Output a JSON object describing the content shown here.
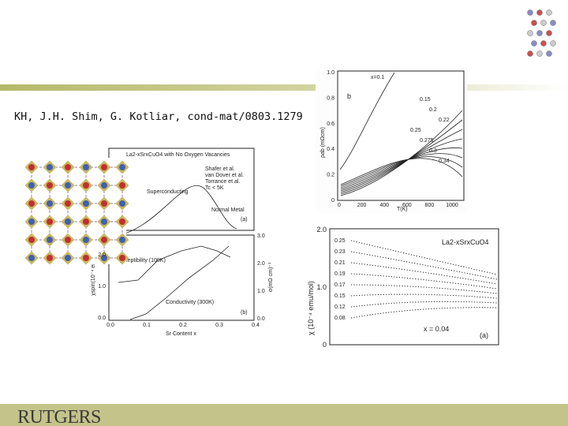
{
  "citation": "KH, J.H. Shim, G. Kotliar, cond-mat/0803.1279",
  "footer": {
    "logo": "RUTGERS"
  },
  "figure_left": {
    "title": "La2-xSrxCuO4 with No Oxygen Vacancies",
    "legend": [
      "Shafer et al.",
      "van Dover et al.",
      "Torrance et al.",
      "Tc < 5K"
    ],
    "region_labels": [
      "Superconducting",
      "Normal Metal"
    ],
    "panel_a": "(a)",
    "panel_b": "(b)",
    "susceptibility": "Susceptibility (100K)",
    "conductivity": "Conductivity (300K)",
    "x_label": "Sr Content x",
    "y_label_left": "χspin(10⁻⁴ em)",
    "y_label_right": "σ(mΩ cm)⁻¹",
    "x_ticks": [
      "0.0",
      "0.1",
      "0.2",
      "0.3",
      "0.4"
    ],
    "y_ticks_left": [
      "2.0",
      "1.0",
      "0.0"
    ],
    "y_ticks_right": [
      "3.0",
      "2.0",
      "1.0",
      "0.0"
    ]
  },
  "figure_resistivity": {
    "panel": "b",
    "x_label": "T(K)",
    "y_label": "ρab (mΩcm)",
    "x_ticks": [
      "0",
      "200",
      "400",
      "600",
      "800",
      "1000"
    ],
    "y_ticks": [
      "0",
      "0.2",
      "0.4",
      "0.6",
      "0.8",
      "1.0"
    ],
    "curve_labels": [
      "x=0.1",
      "0.15",
      "0.2",
      "0.22",
      "0.25",
      "0.275",
      "0.3",
      "0.34"
    ]
  },
  "figure_chi": {
    "formula": "La2-xSrxCuO4",
    "panel": "(a)",
    "x_label": "x = 0.04",
    "y_label": "χ (10⁻⁴ emu/mol)",
    "y_ticks": [
      "0",
      "1.0",
      "2.0"
    ],
    "dopings": [
      "0.25",
      "0.23",
      "0.21",
      "0.19",
      "0.17",
      "0.15",
      "0.12",
      "0.08"
    ]
  }
}
